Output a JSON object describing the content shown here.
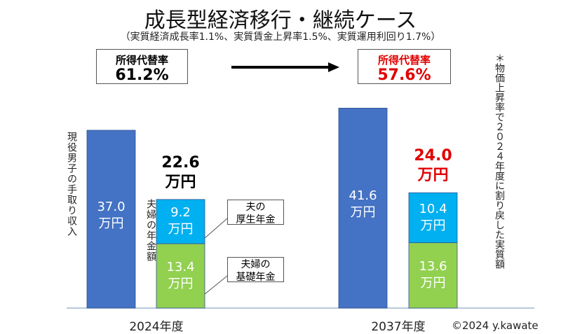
{
  "chart_data": {
    "type": "bar",
    "title": "成長型経済移行・継続ケース",
    "subtitle": "（実質経済成長率1.1%、実質賃金上昇率1.5%、実質運用利回り1.7%）",
    "categories": [
      "2024年度",
      "2037年度"
    ],
    "income_label": "現役男子の手取り収入",
    "pension_label": "夫婦の年金額",
    "unit": "万円",
    "series": [
      {
        "name": "現役男子の手取り収入",
        "values": [
          37.0,
          41.6
        ],
        "color": "#4472C4",
        "labels": [
          "37.0",
          "41.6"
        ]
      },
      {
        "name": "夫婦の基礎年金",
        "values": [
          13.4,
          13.6
        ],
        "color": "#92D050",
        "labels": [
          "13.4",
          "13.6"
        ]
      },
      {
        "name": "夫の厚生年金",
        "values": [
          9.2,
          10.4
        ],
        "color": "#00B0F0",
        "labels": [
          "9.2",
          "10.4"
        ]
      }
    ],
    "totals": [
      "22.6",
      "24.0"
    ],
    "callouts": {
      "kosei": [
        "夫の",
        "厚生年金"
      ],
      "kiso": [
        "夫婦の",
        "基礎年金"
      ]
    },
    "replacement_rate": {
      "label": "所得代替率",
      "values": [
        "61.2%",
        "57.6%"
      ],
      "highlight_color": "#E00000"
    },
    "note": "＊物価上昇率で２０２４年度に割り戻した実質額",
    "credit": "©2024 y.kawate",
    "ylim": [
      0,
      45
    ]
  }
}
